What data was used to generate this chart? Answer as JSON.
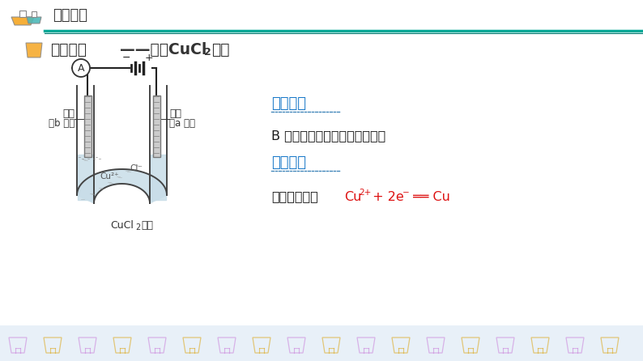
{
  "bg_color": "#ffffff",
  "teal_color": "#00a896",
  "teal_dark": "#007a70",
  "blue_text": "#1878c8",
  "red_text": "#dd1111",
  "black_text": "#1a1a1a",
  "dark_text": "#333333",
  "header_text": "知识精讲",
  "title_text": "实验探究",
  "title_middle": "——电解CuCl",
  "title_suffix": "溶液",
  "section1_title": "实验现象",
  "section1_content": "B 极上逐渐覆盖了一层红色物质",
  "section2_title": "实验分析",
  "section2_prefix": "析出金属铜：",
  "label_left1": "石墨",
  "label_left2": "（b 极）",
  "label_right1": "石墨",
  "label_right2": "（a 极）",
  "label_solution": "CuCl",
  "label_solution2": "溶液",
  "dotted_color": "#4488bb",
  "electrode_color": "#888888",
  "liquid_color": "#c8dde8",
  "wire_color": "#222222",
  "tube_color": "#444444",
  "footer_bg": "#e8f0f8"
}
